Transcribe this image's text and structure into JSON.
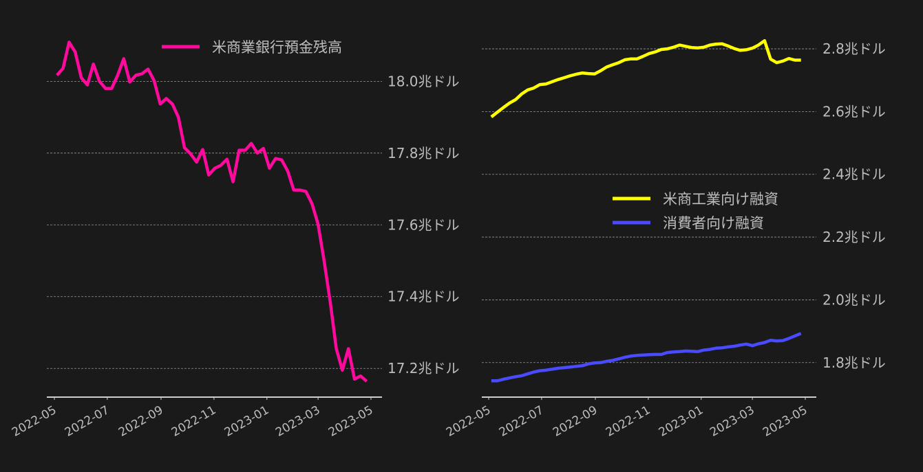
{
  "chart_data": [
    {
      "type": "line",
      "title": "",
      "xlabel": "",
      "ylabel": "",
      "grid": {
        "y": true,
        "x": false
      },
      "legend_position": "top-right",
      "x_ticks": [
        "2022-05",
        "2022-07",
        "2022-09",
        "2022-11",
        "2023-01",
        "2023-03",
        "2023-05"
      ],
      "y_ticks": [
        17.2,
        17.4,
        17.6,
        17.8,
        18.0
      ],
      "y_tick_labels": [
        "17.2兆ドル",
        "17.4兆ドル",
        "17.6兆ドル",
        "17.8兆ドル",
        "18.0兆ドル"
      ],
      "y_axis_side": "right",
      "ylim": [
        17.12,
        18.15
      ],
      "x": [
        "2022-05-04",
        "2022-05-11",
        "2022-05-18",
        "2022-05-25",
        "2022-06-01",
        "2022-06-08",
        "2022-06-15",
        "2022-06-22",
        "2022-06-29",
        "2022-07-06",
        "2022-07-13",
        "2022-07-20",
        "2022-07-27",
        "2022-08-03",
        "2022-08-10",
        "2022-08-17",
        "2022-08-24",
        "2022-08-31",
        "2022-09-07",
        "2022-09-14",
        "2022-09-21",
        "2022-09-28",
        "2022-10-05",
        "2022-10-12",
        "2022-10-19",
        "2022-10-26",
        "2022-11-02",
        "2022-11-09",
        "2022-11-16",
        "2022-11-23",
        "2022-11-30",
        "2022-12-07",
        "2022-12-14",
        "2022-12-21",
        "2022-12-28",
        "2023-01-04",
        "2023-01-11",
        "2023-01-18",
        "2023-01-25",
        "2023-02-01",
        "2023-02-08",
        "2023-02-15",
        "2023-02-22",
        "2023-03-01",
        "2023-03-08",
        "2023-03-15",
        "2023-03-22",
        "2023-03-29",
        "2023-04-05",
        "2023-04-12",
        "2023-04-19",
        "2023-04-26"
      ],
      "series": [
        {
          "name": "米商業銀行預金残高",
          "color": "#ff0a9c",
          "values": [
            18.017,
            18.036,
            18.109,
            18.082,
            18.01,
            17.99,
            18.048,
            18.0,
            17.98,
            17.98,
            18.017,
            18.063,
            17.998,
            18.017,
            18.021,
            18.034,
            18.002,
            17.937,
            17.952,
            17.937,
            17.9,
            17.815,
            17.798,
            17.775,
            17.81,
            17.739,
            17.758,
            17.766,
            17.783,
            17.72,
            17.808,
            17.808,
            17.827,
            17.8,
            17.813,
            17.758,
            17.785,
            17.781,
            17.75,
            17.697,
            17.697,
            17.693,
            17.659,
            17.602,
            17.5,
            17.385,
            17.255,
            17.195,
            17.255,
            17.17,
            17.179,
            17.164
          ]
        }
      ]
    },
    {
      "type": "line",
      "title": "",
      "xlabel": "",
      "ylabel": "",
      "grid": {
        "y": true,
        "x": false
      },
      "legend_position": "center-right",
      "x_ticks": [
        "2022-05",
        "2022-07",
        "2022-09",
        "2022-11",
        "2023-01",
        "2023-03",
        "2023-05"
      ],
      "y_ticks": [
        1.8,
        2.0,
        2.2,
        2.4,
        2.6,
        2.8
      ],
      "y_tick_labels": [
        "1.8兆ドル",
        "2.0兆ドル",
        "2.2兆ドル",
        "2.4兆ドル",
        "2.6兆ドル",
        "2.8兆ドル"
      ],
      "y_axis_side": "right",
      "ylim": [
        1.69,
        2.868
      ],
      "x": [
        "2022-05-04",
        "2022-05-11",
        "2022-05-18",
        "2022-05-25",
        "2022-06-01",
        "2022-06-08",
        "2022-06-15",
        "2022-06-22",
        "2022-06-29",
        "2022-07-06",
        "2022-07-13",
        "2022-07-20",
        "2022-07-27",
        "2022-08-03",
        "2022-08-10",
        "2022-08-17",
        "2022-08-24",
        "2022-08-31",
        "2022-09-07",
        "2022-09-14",
        "2022-09-21",
        "2022-09-28",
        "2022-10-05",
        "2022-10-12",
        "2022-10-19",
        "2022-10-26",
        "2022-11-02",
        "2022-11-09",
        "2022-11-16",
        "2022-11-23",
        "2022-11-30",
        "2022-12-07",
        "2022-12-14",
        "2022-12-21",
        "2022-12-28",
        "2023-01-04",
        "2023-01-11",
        "2023-01-18",
        "2023-01-25",
        "2023-02-01",
        "2023-02-08",
        "2023-02-15",
        "2023-02-22",
        "2023-03-01",
        "2023-03-08",
        "2023-03-15",
        "2023-03-22",
        "2023-03-29",
        "2023-04-05",
        "2023-04-12",
        "2023-04-19",
        "2023-04-26"
      ],
      "series": [
        {
          "name": "米商工業向け融資",
          "color": "#ffff00",
          "values": [
            2.583,
            2.598,
            2.613,
            2.627,
            2.638,
            2.656,
            2.669,
            2.675,
            2.686,
            2.688,
            2.695,
            2.702,
            2.708,
            2.714,
            2.719,
            2.723,
            2.721,
            2.72,
            2.73,
            2.742,
            2.749,
            2.756,
            2.765,
            2.768,
            2.768,
            2.776,
            2.785,
            2.79,
            2.798,
            2.8,
            2.805,
            2.812,
            2.808,
            2.804,
            2.803,
            2.805,
            2.812,
            2.815,
            2.816,
            2.809,
            2.801,
            2.795,
            2.797,
            2.802,
            2.812,
            2.826,
            2.767,
            2.756,
            2.761,
            2.769,
            2.764,
            2.764
          ]
        },
        {
          "name": "消費者向け融資",
          "color": "#4a4aff",
          "values": [
            1.742,
            1.742,
            1.747,
            1.751,
            1.755,
            1.758,
            1.764,
            1.77,
            1.774,
            1.776,
            1.779,
            1.782,
            1.784,
            1.786,
            1.788,
            1.79,
            1.796,
            1.799,
            1.8,
            1.804,
            1.807,
            1.812,
            1.817,
            1.821,
            1.823,
            1.824,
            1.825,
            1.826,
            1.826,
            1.832,
            1.834,
            1.835,
            1.837,
            1.836,
            1.835,
            1.84,
            1.842,
            1.846,
            1.847,
            1.85,
            1.852,
            1.856,
            1.859,
            1.854,
            1.86,
            1.864,
            1.871,
            1.869,
            1.87,
            1.877,
            1.885,
            1.893
          ]
        }
      ]
    }
  ]
}
